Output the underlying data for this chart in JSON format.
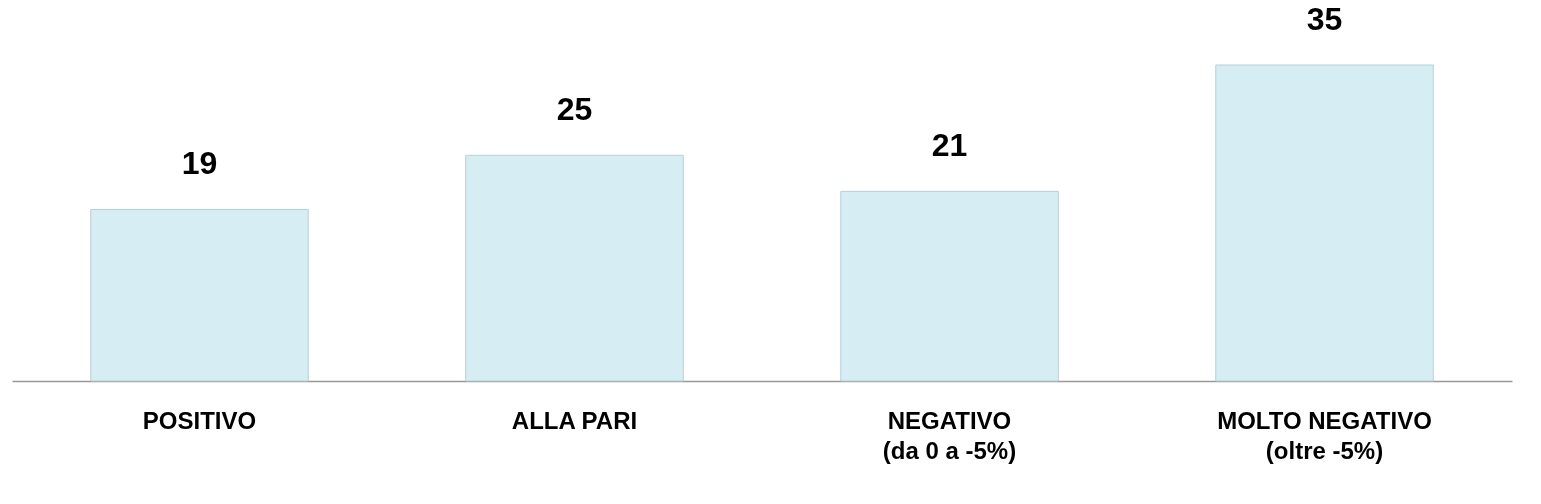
{
  "chart_data": {
    "type": "bar",
    "categories": [
      "POSITIVO",
      "ALLA PARI",
      "NEGATIVO\n(da 0 a -5%)",
      "MOLTO NEGATIVO\n(oltre -5%)"
    ],
    "values": [
      19,
      25,
      21,
      35
    ],
    "color": "#d6eef3",
    "data_labels": true
  }
}
